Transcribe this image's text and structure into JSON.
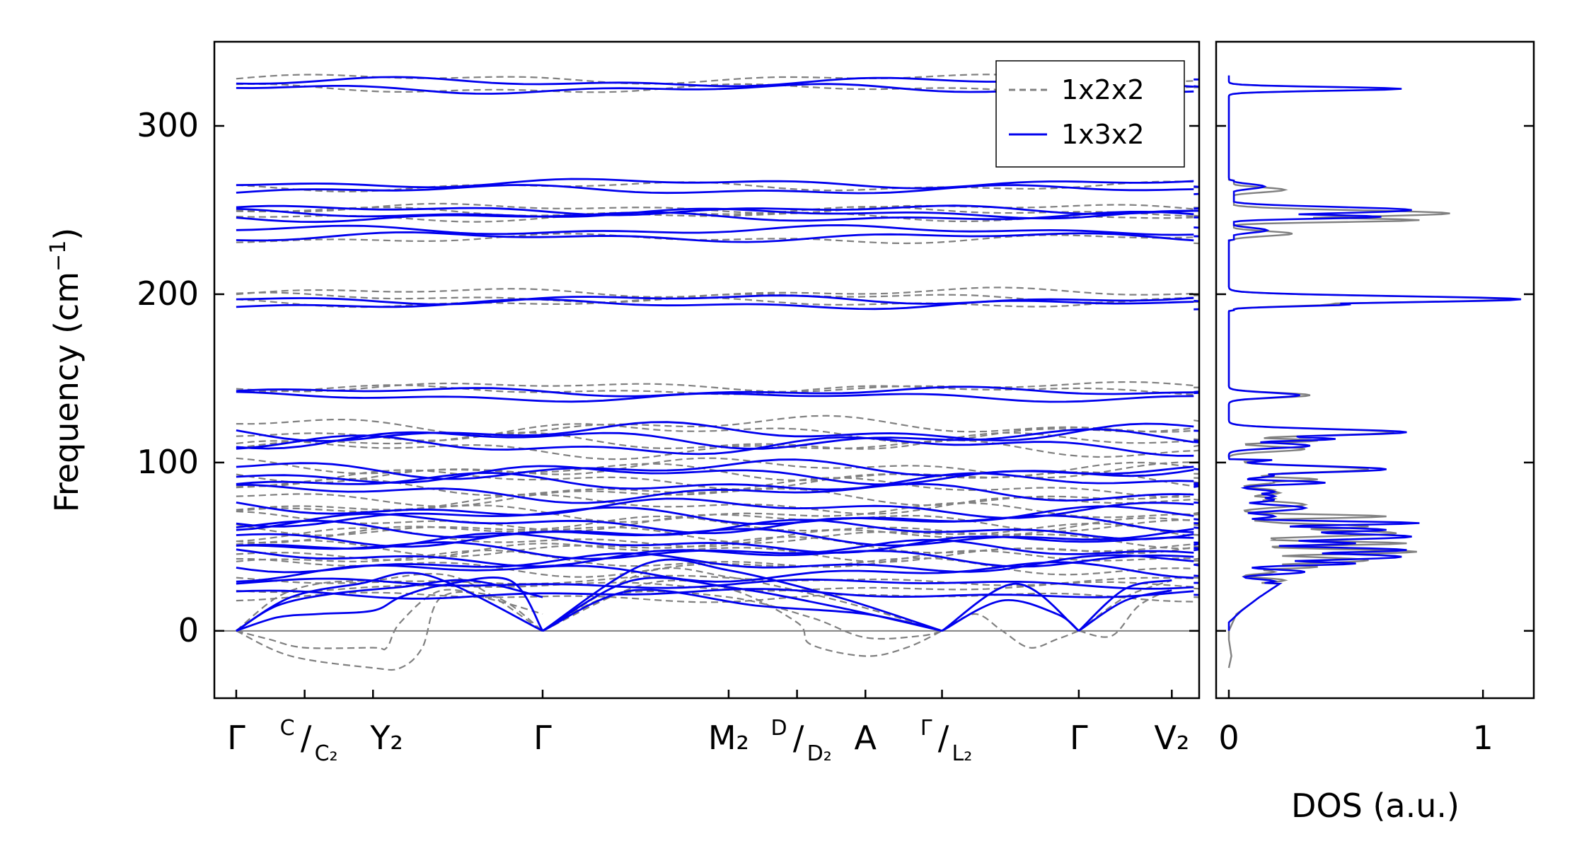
{
  "chart_data": [
    {
      "type": "line",
      "panel": "band-structure",
      "ylabel": "Frequency (cm⁻¹)",
      "ylabel_main": "Frequency (cm",
      "ylabel_sup": "−1",
      "ylabel_close": ")",
      "ylim": [
        -40,
        350
      ],
      "yticks": [
        0,
        100,
        200,
        300
      ],
      "zero_line": true,
      "segments": [
        {
          "x0": 0.0,
          "x1": 3.5
        },
        {
          "x0": 3.5,
          "x1": 5.0
        }
      ],
      "xticks": [
        {
          "x": 0.0,
          "label": "Γ",
          "major": true
        },
        {
          "x": 0.25,
          "label": "",
          "major": true
        },
        {
          "x": 0.5,
          "label": "",
          "major": true
        },
        {
          "x": 1.12,
          "label": "",
          "major": true
        },
        {
          "x": 1.8,
          "label": "",
          "major": true
        },
        {
          "x": 2.05,
          "label": "",
          "major": true
        },
        {
          "x": 2.3,
          "label": "",
          "major": true
        },
        {
          "x": 2.58,
          "label": "",
          "major": true
        },
        {
          "x": 3.08,
          "label": "",
          "major": true
        },
        {
          "x": 3.42,
          "label": "",
          "major": true
        }
      ],
      "xtick_labels": [
        {
          "x": 0.0,
          "text": "Γ",
          "kind": "plain"
        },
        {
          "x": 0.25,
          "sup": "C",
          "sub": "C₂",
          "kind": "split"
        },
        {
          "x": 0.55,
          "text": "Y₂",
          "kind": "plain"
        },
        {
          "x": 1.12,
          "text": "Γ",
          "kind": "plain"
        },
        {
          "x": 1.8,
          "text": "M₂",
          "kind": "plain"
        },
        {
          "x": 2.05,
          "sup": "D",
          "sub": "D₂",
          "kind": "split"
        },
        {
          "x": 2.3,
          "text": "A",
          "kind": "plain"
        },
        {
          "x": 2.58,
          "sup": "Γ",
          "sub": "L₂",
          "kind": "split"
        },
        {
          "x": 3.08,
          "text": "Γ",
          "kind": "plain"
        },
        {
          "x": 3.42,
          "text": "V₂",
          "kind": "plain"
        }
      ],
      "legend": {
        "location": "top-right",
        "entries": [
          {
            "label": "1x2x2",
            "color": "#808080",
            "style": "dashed"
          },
          {
            "label": "1x3x2",
            "color": "#0000ee",
            "style": "solid"
          }
        ]
      },
      "series": [
        {
          "name": "1x2x2",
          "color": "#808080",
          "style": "dashed",
          "flat_levels": [
            328,
            322,
            264,
            251,
            249,
            246,
            233,
            201,
            198,
            195,
            145,
            143,
            122,
            118,
            112,
            108,
            97,
            94,
            90,
            85,
            80,
            75,
            70,
            65,
            62,
            58,
            55,
            50,
            47,
            42,
            38,
            30,
            26,
            20
          ],
          "acoustic": [
            {
              "pts": [
                [
                  0,
                  0
                ],
                [
                  0.12,
                  -5
                ],
                [
                  0.25,
                  -10
                ],
                [
                  0.5,
                  -10
                ],
                [
                  0.55,
                  -10
                ],
                [
                  0.6,
                  5
                ],
                [
                  0.75,
                  24
                ],
                [
                  0.95,
                  18
                ],
                [
                  1.12,
                  10
                ]
              ]
            },
            {
              "pts": [
                [
                  0,
                  0
                ],
                [
                  0.2,
                  -15
                ],
                [
                  0.5,
                  -22
                ],
                [
                  0.6,
                  -22
                ],
                [
                  0.68,
                  -10
                ],
                [
                  0.75,
                  20
                ],
                [
                  0.95,
                  20
                ],
                [
                  1.12,
                  0
                ]
              ]
            },
            {
              "pts": [
                [
                  0,
                  0
                ],
                [
                  0.15,
                  20
                ],
                [
                  0.3,
                  28
                ],
                [
                  0.5,
                  30
                ],
                [
                  0.8,
                  32
                ],
                [
                  1.12,
                  0
                ]
              ]
            },
            {
              "pts": [
                [
                  1.12,
                  0
                ],
                [
                  1.5,
                  28
                ],
                [
                  1.8,
                  25
                ],
                [
                  2.05,
                  5
                ],
                [
                  2.1,
                  -8
                ],
                [
                  2.3,
                  -15
                ],
                [
                  2.45,
                  -10
                ],
                [
                  2.58,
                  0
                ]
              ]
            },
            {
              "pts": [
                [
                  1.12,
                  0
                ],
                [
                  1.4,
                  22
                ],
                [
                  1.8,
                  20
                ],
                [
                  2.1,
                  8
                ],
                [
                  2.3,
                  -4
                ],
                [
                  2.5,
                  -3
                ],
                [
                  2.58,
                  0
                ]
              ]
            },
            {
              "pts": [
                [
                  1.12,
                  0
                ],
                [
                  1.5,
                  35
                ],
                [
                  1.8,
                  32
                ],
                [
                  2.2,
                  18
                ],
                [
                  2.58,
                  0
                ]
              ]
            },
            {
              "pts": [
                [
                  2.58,
                  0
                ],
                [
                  2.7,
                  10
                ],
                [
                  2.8,
                  0
                ],
                [
                  2.9,
                  -10
                ],
                [
                  3.0,
                  -5
                ],
                [
                  3.08,
                  0
                ]
              ]
            },
            {
              "pts": [
                [
                  3.08,
                  0
                ],
                [
                  3.2,
                  -3
                ],
                [
                  3.3,
                  15
                ],
                [
                  3.42,
                  25
                ]
              ]
            },
            {
              "pts": [
                [
                  3.08,
                  0
                ],
                [
                  3.25,
                  20
                ],
                [
                  3.42,
                  30
                ]
              ]
            }
          ]
        },
        {
          "name": "1x3x2",
          "color": "#0000ee",
          "style": "solid",
          "flat_levels": [
            326,
            322,
            266,
            262,
            250,
            248,
            246,
            234,
            238,
            197,
            194,
            142,
            139,
            118,
            114,
            110,
            96,
            93,
            88,
            82,
            73,
            68,
            64,
            60,
            56,
            52,
            48,
            44,
            40,
            35,
            28,
            22
          ],
          "acoustic": [
            {
              "pts": [
                [
                  0,
                  0
                ],
                [
                  0.15,
                  8
                ],
                [
                  0.3,
                  10
                ],
                [
                  0.5,
                  12
                ],
                [
                  0.6,
                  20
                ],
                [
                  0.75,
                  27
                ],
                [
                  1.0,
                  30
                ],
                [
                  1.12,
                  0
                ]
              ]
            },
            {
              "pts": [
                [
                  0,
                  0
                ],
                [
                  0.15,
                  15
                ],
                [
                  0.35,
                  22
                ],
                [
                  0.6,
                  26
                ],
                [
                  0.85,
                  30
                ],
                [
                  1.12,
                  20
                ]
              ]
            },
            {
              "pts": [
                [
                  0,
                  0
                ],
                [
                  0.2,
                  20
                ],
                [
                  0.45,
                  28
                ],
                [
                  0.7,
                  33
                ],
                [
                  1.12,
                  0
                ]
              ]
            },
            {
              "pts": [
                [
                  1.12,
                  0
                ],
                [
                  1.45,
                  30
                ],
                [
                  1.8,
                  26
                ],
                [
                  2.2,
                  14
                ],
                [
                  2.58,
                  0
                ]
              ]
            },
            {
              "pts": [
                [
                  1.12,
                  0
                ],
                [
                  1.5,
                  40
                ],
                [
                  1.8,
                  36
                ],
                [
                  2.2,
                  20
                ],
                [
                  2.58,
                  0
                ]
              ]
            },
            {
              "pts": [
                [
                  1.12,
                  0
                ],
                [
                  1.45,
                  24
                ],
                [
                  1.9,
                  15
                ],
                [
                  2.3,
                  10
                ],
                [
                  2.58,
                  0
                ]
              ]
            },
            {
              "pts": [
                [
                  2.58,
                  0
                ],
                [
                  2.8,
                  18
                ],
                [
                  3.0,
                  10
                ],
                [
                  3.08,
                  0
                ]
              ]
            },
            {
              "pts": [
                [
                  2.58,
                  0
                ],
                [
                  2.85,
                  28
                ],
                [
                  3.08,
                  0
                ]
              ]
            },
            {
              "pts": [
                [
                  3.08,
                  0
                ],
                [
                  3.25,
                  18
                ],
                [
                  3.42,
                  24
                ]
              ]
            },
            {
              "pts": [
                [
                  3.08,
                  0
                ],
                [
                  3.25,
                  25
                ],
                [
                  3.42,
                  30
                ]
              ]
            }
          ]
        }
      ]
    },
    {
      "type": "line",
      "panel": "density-of-states",
      "xlabel": "DOS (a.u.)",
      "xlim": [
        -0.05,
        1.2
      ],
      "xticks": [
        0,
        1
      ],
      "xtick_labels": [
        "0",
        "1"
      ],
      "ylim": [
        -40,
        350
      ],
      "series": [
        {
          "name": "1x2x2",
          "color": "#808080",
          "peaks": [
            [
              322,
              0.66
            ],
            [
              262,
              0.22
            ],
            [
              248,
              0.87
            ],
            [
              244,
              0.75
            ],
            [
              236,
              0.25
            ],
            [
              197,
              1.1
            ],
            [
              194,
              0.4
            ],
            [
              140,
              0.32
            ],
            [
              118,
              0.65
            ],
            [
              113,
              0.35
            ],
            [
              108,
              0.3
            ],
            [
              96,
              0.55
            ],
            [
              90,
              0.35
            ],
            [
              82,
              0.2
            ],
            [
              75,
              0.3
            ],
            [
              68,
              0.62
            ],
            [
              62,
              0.55
            ],
            [
              58,
              0.66
            ],
            [
              52,
              0.7
            ],
            [
              47,
              0.74
            ],
            [
              42,
              0.55
            ],
            [
              38,
              0.35
            ],
            [
              30,
              0.22
            ]
          ],
          "tail": [
            [
              -22,
              0.0
            ],
            [
              -15,
              0.01
            ],
            [
              -5,
              0.0
            ],
            [
              0,
              0.0
            ],
            [
              10,
              0.03
            ],
            [
              20,
              0.12
            ],
            [
              28,
              0.2
            ]
          ]
        },
        {
          "name": "1x3x2",
          "color": "#0000ee",
          "peaks": [
            [
              322,
              0.68
            ],
            [
              264,
              0.14
            ],
            [
              250,
              0.72
            ],
            [
              246,
              0.6
            ],
            [
              238,
              0.15
            ],
            [
              197,
              1.15
            ],
            [
              194,
              0.48
            ],
            [
              140,
              0.28
            ],
            [
              118,
              0.7
            ],
            [
              114,
              0.42
            ],
            [
              110,
              0.32
            ],
            [
              96,
              0.62
            ],
            [
              88,
              0.38
            ],
            [
              80,
              0.18
            ],
            [
              73,
              0.3
            ],
            [
              64,
              0.75
            ],
            [
              60,
              0.62
            ],
            [
              56,
              0.72
            ],
            [
              52,
              0.5
            ],
            [
              48,
              0.7
            ],
            [
              44,
              0.68
            ],
            [
              40,
              0.5
            ],
            [
              35,
              0.3
            ]
          ],
          "tail": [
            [
              0,
              0.0
            ],
            [
              5,
              0.0
            ],
            [
              12,
              0.05
            ],
            [
              20,
              0.12
            ],
            [
              28,
              0.2
            ]
          ]
        }
      ]
    }
  ]
}
